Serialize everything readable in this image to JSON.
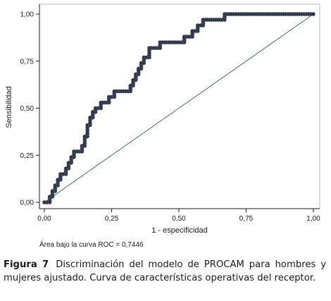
{
  "chart_data": {
    "type": "line",
    "xlabel": "1 - especificidad",
    "ylabel": "Sensibilidad",
    "xlim": [
      0,
      1
    ],
    "ylim": [
      0,
      1
    ],
    "x_ticks": [
      "0,00",
      "0,25",
      "0,50",
      "0,75",
      "1,00"
    ],
    "x_tick_values": [
      0,
      0.25,
      0.5,
      0.75,
      1
    ],
    "y_ticks": [
      "0,00",
      "0,25",
      "0,50",
      "0,75",
      "1,00"
    ],
    "y_tick_values": [
      0,
      0.25,
      0.5,
      0.75,
      1
    ],
    "grid": false,
    "annotation": "Área bajo la curva ROC = 0,7446",
    "series": [
      {
        "style": "markers",
        "color": "#2b3446",
        "x": [
          0.0,
          0.02,
          0.02,
          0.03,
          0.03,
          0.04,
          0.04,
          0.05,
          0.05,
          0.06,
          0.06,
          0.08,
          0.08,
          0.09,
          0.09,
          0.1,
          0.1,
          0.11,
          0.11,
          0.14,
          0.14,
          0.15,
          0.15,
          0.16,
          0.16,
          0.17,
          0.17,
          0.18,
          0.18,
          0.19,
          0.19,
          0.21,
          0.21,
          0.24,
          0.24,
          0.26,
          0.26,
          0.32,
          0.32,
          0.33,
          0.33,
          0.34,
          0.34,
          0.35,
          0.35,
          0.36,
          0.36,
          0.37,
          0.37,
          0.39,
          0.39,
          0.43,
          0.43,
          0.52,
          0.52,
          0.55,
          0.55,
          0.57,
          0.57,
          0.59,
          0.59,
          0.67,
          0.67,
          1.0
        ],
        "y": [
          0.0,
          0.0,
          0.03,
          0.03,
          0.06,
          0.06,
          0.09,
          0.09,
          0.12,
          0.12,
          0.15,
          0.15,
          0.18,
          0.18,
          0.21,
          0.21,
          0.24,
          0.24,
          0.27,
          0.27,
          0.3,
          0.3,
          0.35,
          0.35,
          0.41,
          0.41,
          0.45,
          0.45,
          0.48,
          0.48,
          0.5,
          0.5,
          0.53,
          0.53,
          0.56,
          0.56,
          0.59,
          0.59,
          0.62,
          0.62,
          0.65,
          0.65,
          0.68,
          0.68,
          0.71,
          0.71,
          0.74,
          0.74,
          0.77,
          0.77,
          0.82,
          0.82,
          0.85,
          0.85,
          0.88,
          0.88,
          0.91,
          0.91,
          0.94,
          0.94,
          0.97,
          0.97,
          1.0,
          1.0
        ]
      },
      {
        "style": "line",
        "color": "#3f6f5a",
        "x": [
          0,
          1
        ],
        "y": [
          0,
          1
        ]
      }
    ]
  },
  "caption": {
    "label": "Figura 7",
    "text": "Discriminación del modelo de PROCAM para hombres y mujeres ajustado. Curva de características operativas del receptor."
  }
}
